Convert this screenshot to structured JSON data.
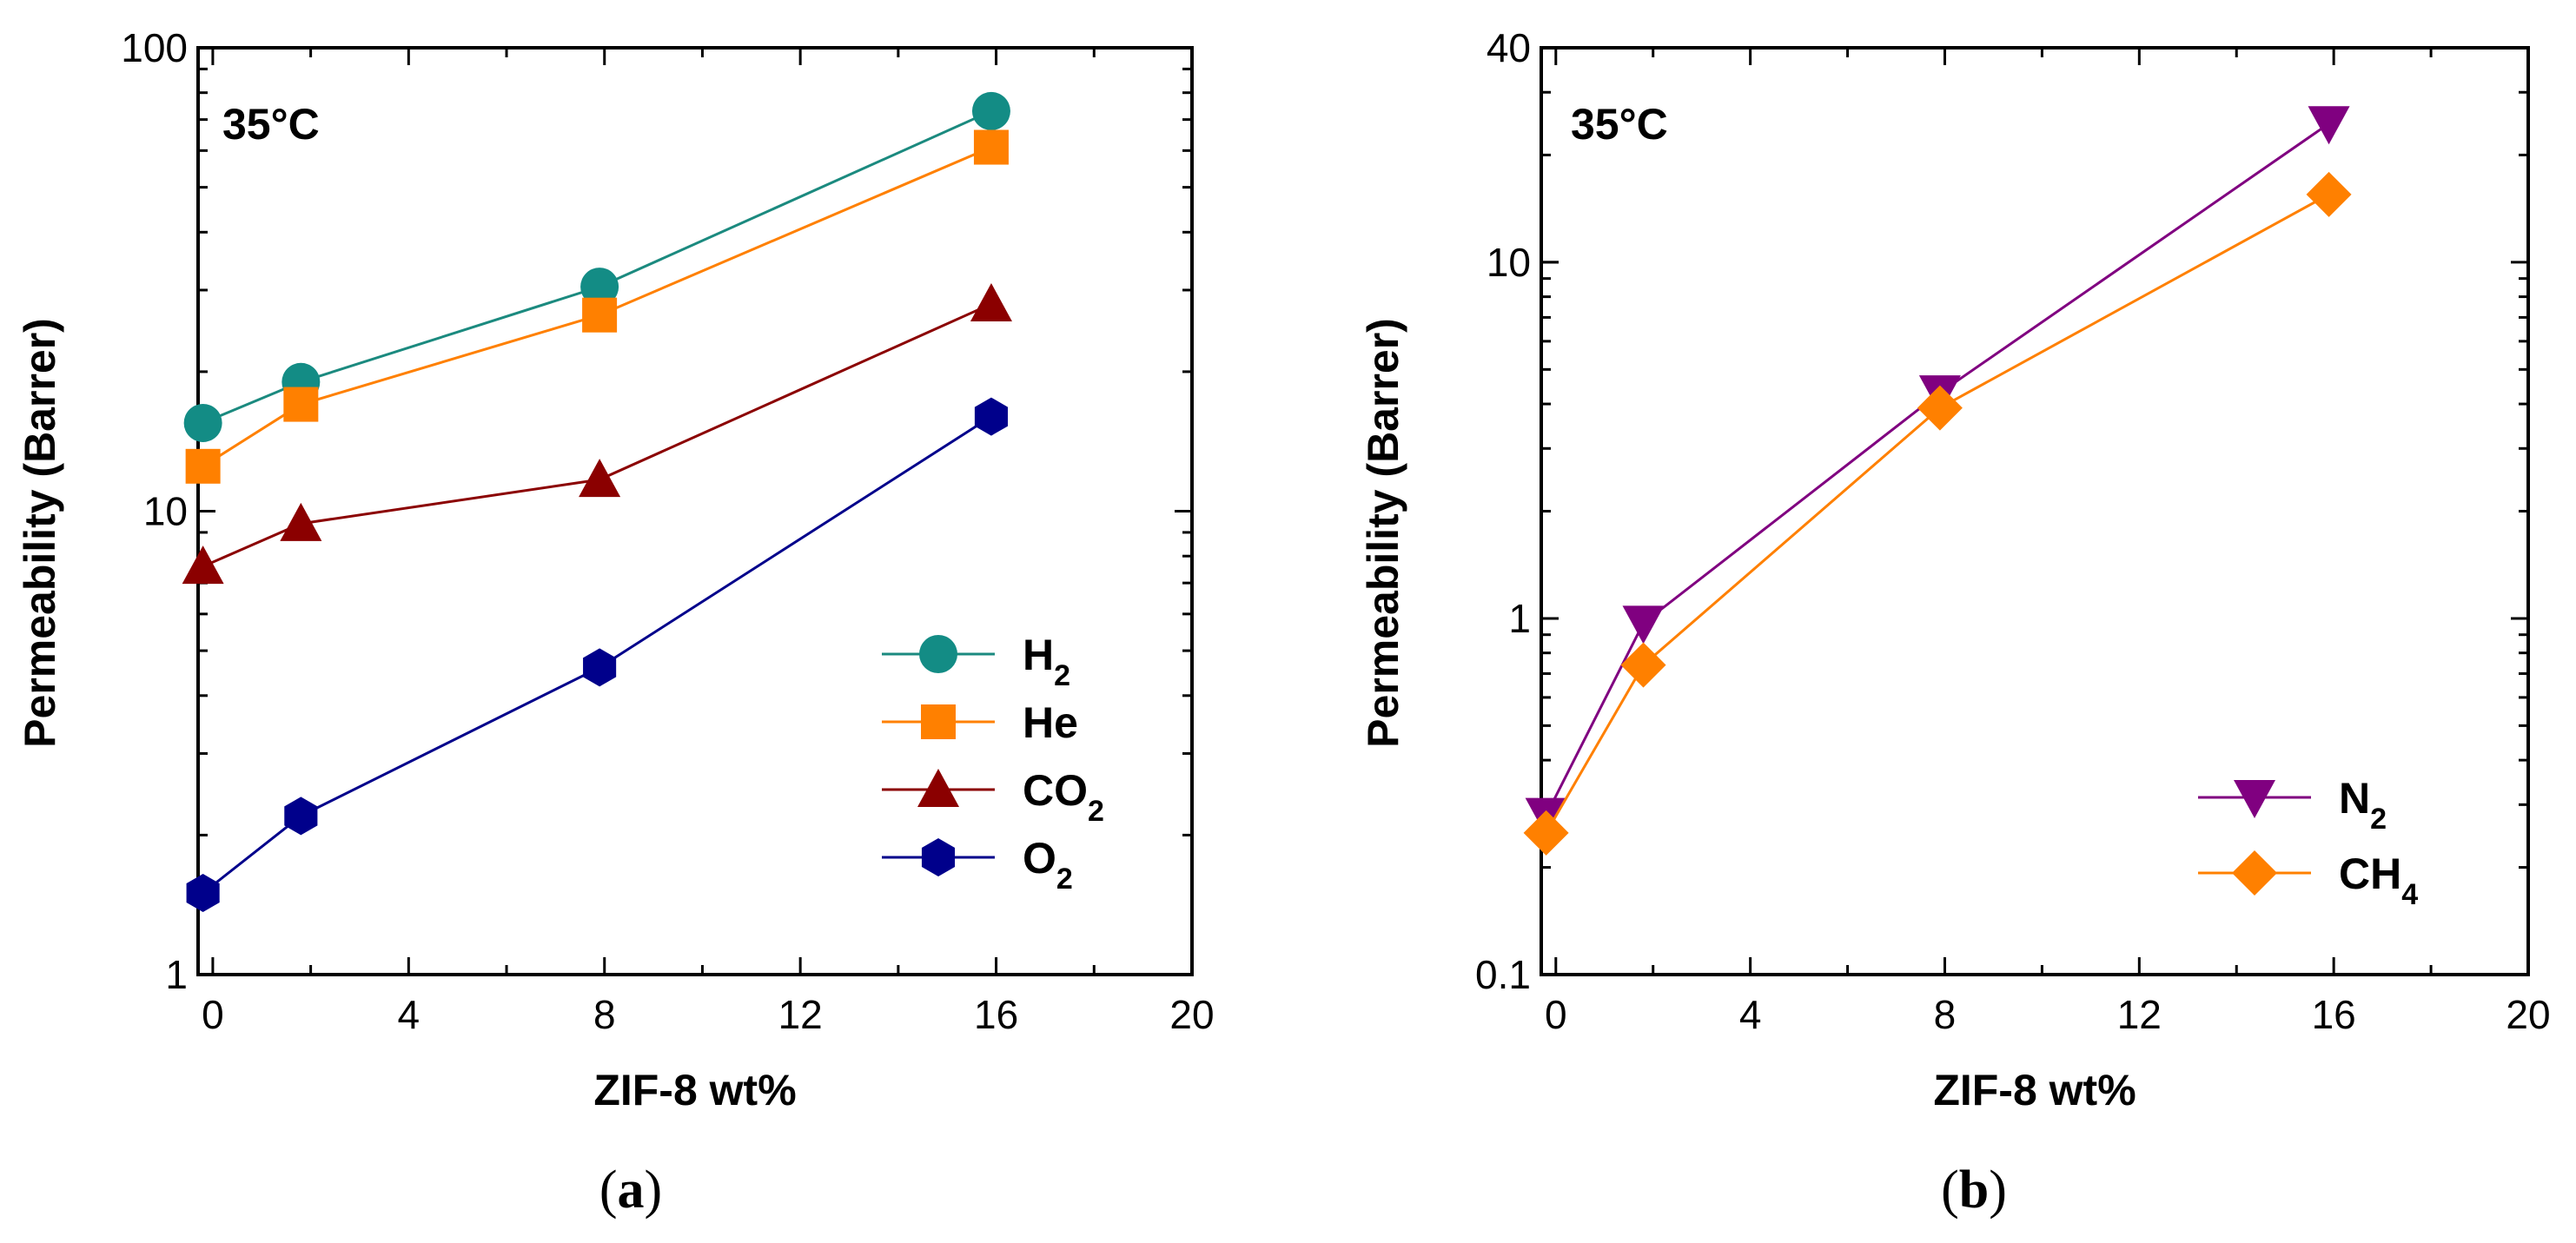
{
  "chart_data": [
    {
      "panel": "a",
      "caption": {
        "open": "(",
        "letter": "a",
        "close": ")"
      },
      "type": "line",
      "yscale": "log",
      "annotation": "35°C",
      "xlabel": "ZIF-8 wt%",
      "ylabel": "Permeability (Barrer)",
      "xlim": [
        -0.3,
        20
      ],
      "ylim": [
        1,
        100
      ],
      "xticks": [
        0,
        4,
        8,
        12,
        16,
        20
      ],
      "xtick_labels": [
        "0",
        "4",
        "8",
        "12",
        "16",
        "20"
      ],
      "yticks": [
        1,
        10,
        100
      ],
      "ytick_labels": [
        "1",
        "10",
        "100"
      ],
      "legend_position": "bottom-right",
      "series": [
        {
          "name": "H",
          "sub": "2",
          "marker": "circle",
          "line_color": "#1b8a7f",
          "marker_color": "#138c85",
          "x": [
            -0.2,
            1.8,
            7.9,
            15.9
          ],
          "values": [
            15.5,
            19.0,
            30.5,
            73.0
          ]
        },
        {
          "name": "He",
          "sub": "",
          "marker": "square",
          "line_color": "#ff8000",
          "marker_color": "#ff8000",
          "x": [
            -0.2,
            1.8,
            7.9,
            15.9
          ],
          "values": [
            12.5,
            17.0,
            26.5,
            61.0
          ]
        },
        {
          "name": "CO",
          "sub": "2",
          "marker": "triangle-up",
          "line_color": "#8b0000",
          "marker_color": "#8b0000",
          "x": [
            -0.2,
            1.8,
            7.9,
            15.9
          ],
          "values": [
            7.6,
            9.4,
            11.7,
            28.0
          ]
        },
        {
          "name": "O",
          "sub": "2",
          "marker": "hexagon",
          "line_color": "#00008b",
          "marker_color": "#00008b",
          "x": [
            -0.2,
            1.8,
            7.9,
            15.9
          ],
          "values": [
            1.5,
            2.2,
            4.6,
            16.0
          ]
        }
      ]
    },
    {
      "panel": "b",
      "caption": {
        "open": "(",
        "letter": "b",
        "close": ")"
      },
      "type": "line",
      "yscale": "log",
      "annotation": "35°C",
      "xlabel": "ZIF-8 wt%",
      "ylabel": "Permeability (Barrer)",
      "xlim": [
        -0.3,
        20
      ],
      "ylim": [
        0.1,
        40
      ],
      "xticks": [
        0,
        4,
        8,
        12,
        16,
        20
      ],
      "xtick_labels": [
        "0",
        "4",
        "8",
        "12",
        "16",
        "20"
      ],
      "yticks": [
        0.1,
        1,
        10,
        40
      ],
      "ytick_labels": [
        "0.1",
        "1",
        "10",
        "40"
      ],
      "legend_position": "bottom-right",
      "series": [
        {
          "name": "N",
          "sub": "2",
          "marker": "triangle-down",
          "line_color": "#800080",
          "marker_color": "#800080",
          "x": [
            -0.2,
            1.8,
            7.9,
            15.9
          ],
          "values": [
            0.28,
            0.97,
            4.3,
            24.5
          ]
        },
        {
          "name": "CH",
          "sub": "4",
          "marker": "diamond",
          "line_color": "#ff8000",
          "marker_color": "#ff8000",
          "x": [
            -0.2,
            1.8,
            7.9,
            15.9
          ],
          "values": [
            0.25,
            0.74,
            3.9,
            15.5
          ]
        }
      ]
    }
  ]
}
